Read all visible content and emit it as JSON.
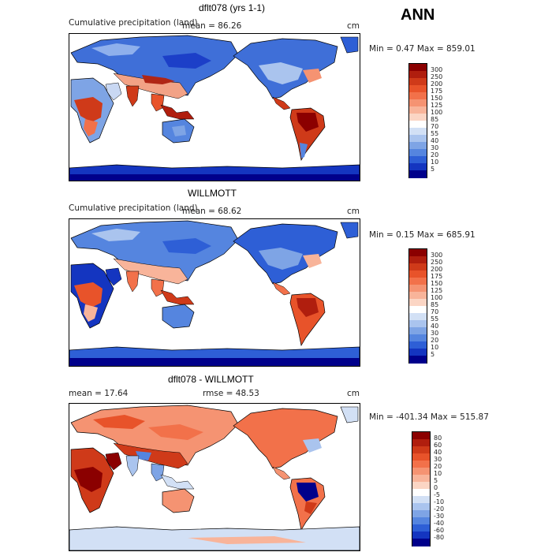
{
  "season": "ANN",
  "panels": [
    {
      "title": "dflt078 (yrs 1-1)",
      "subtitle": "Cumulative precipitation (land)",
      "stat_left": "mean =   86.26",
      "units": "cm",
      "minmax": "Min =    0.47 Max = 859.01",
      "colorbar": {
        "ticks": [
          "300",
          "250",
          "200",
          "175",
          "150",
          "125",
          "100",
          "85",
          "70",
          "55",
          "40",
          "30",
          "20",
          "10",
          "5"
        ],
        "colors": [
          "#8b0000",
          "#b01e0e",
          "#cf3a19",
          "#e8532a",
          "#f2714a",
          "#f59372",
          "#f8b49a",
          "#fbd5c4",
          "#ffffff",
          "#d2e0f5",
          "#aac4ee",
          "#7ea4e5",
          "#5585df",
          "#2e5fd6",
          "#1435c0",
          "#00008b"
        ]
      }
    },
    {
      "title": "WILLMOTT",
      "subtitle": "Cumulative precipitation (land)",
      "stat_left": "mean =   68.62",
      "units": "cm",
      "minmax": "Min =    0.15 Max = 685.91",
      "colorbar": {
        "ticks": [
          "300",
          "250",
          "200",
          "175",
          "150",
          "125",
          "100",
          "85",
          "70",
          "55",
          "40",
          "30",
          "20",
          "10",
          "5"
        ],
        "colors": [
          "#8b0000",
          "#b01e0e",
          "#cf3a19",
          "#e8532a",
          "#f2714a",
          "#f59372",
          "#f8b49a",
          "#fbd5c4",
          "#ffffff",
          "#d2e0f5",
          "#aac4ee",
          "#7ea4e5",
          "#5585df",
          "#2e5fd6",
          "#1435c0",
          "#00008b"
        ]
      }
    },
    {
      "title": "dflt078 - WILLMOTT",
      "subtitle": "",
      "stat_left": "mean =   17.64",
      "stat_mid": "rmse =   48.53",
      "units": "cm",
      "minmax": "Min = -401.34 Max = 515.87",
      "colorbar": {
        "ticks": [
          "80",
          "60",
          "40",
          "30",
          "20",
          "10",
          "5",
          "0",
          "-5",
          "-10",
          "-20",
          "-30",
          "-40",
          "-60",
          "-80"
        ],
        "colors": [
          "#8b0000",
          "#b01e0e",
          "#cf3a19",
          "#e8532a",
          "#f2714a",
          "#f59372",
          "#f8b49a",
          "#fbd5c4",
          "#ffffff",
          "#d2e0f5",
          "#aac4ee",
          "#7ea4e5",
          "#5585df",
          "#2e5fd6",
          "#1435c0",
          "#00008b"
        ]
      }
    }
  ]
}
